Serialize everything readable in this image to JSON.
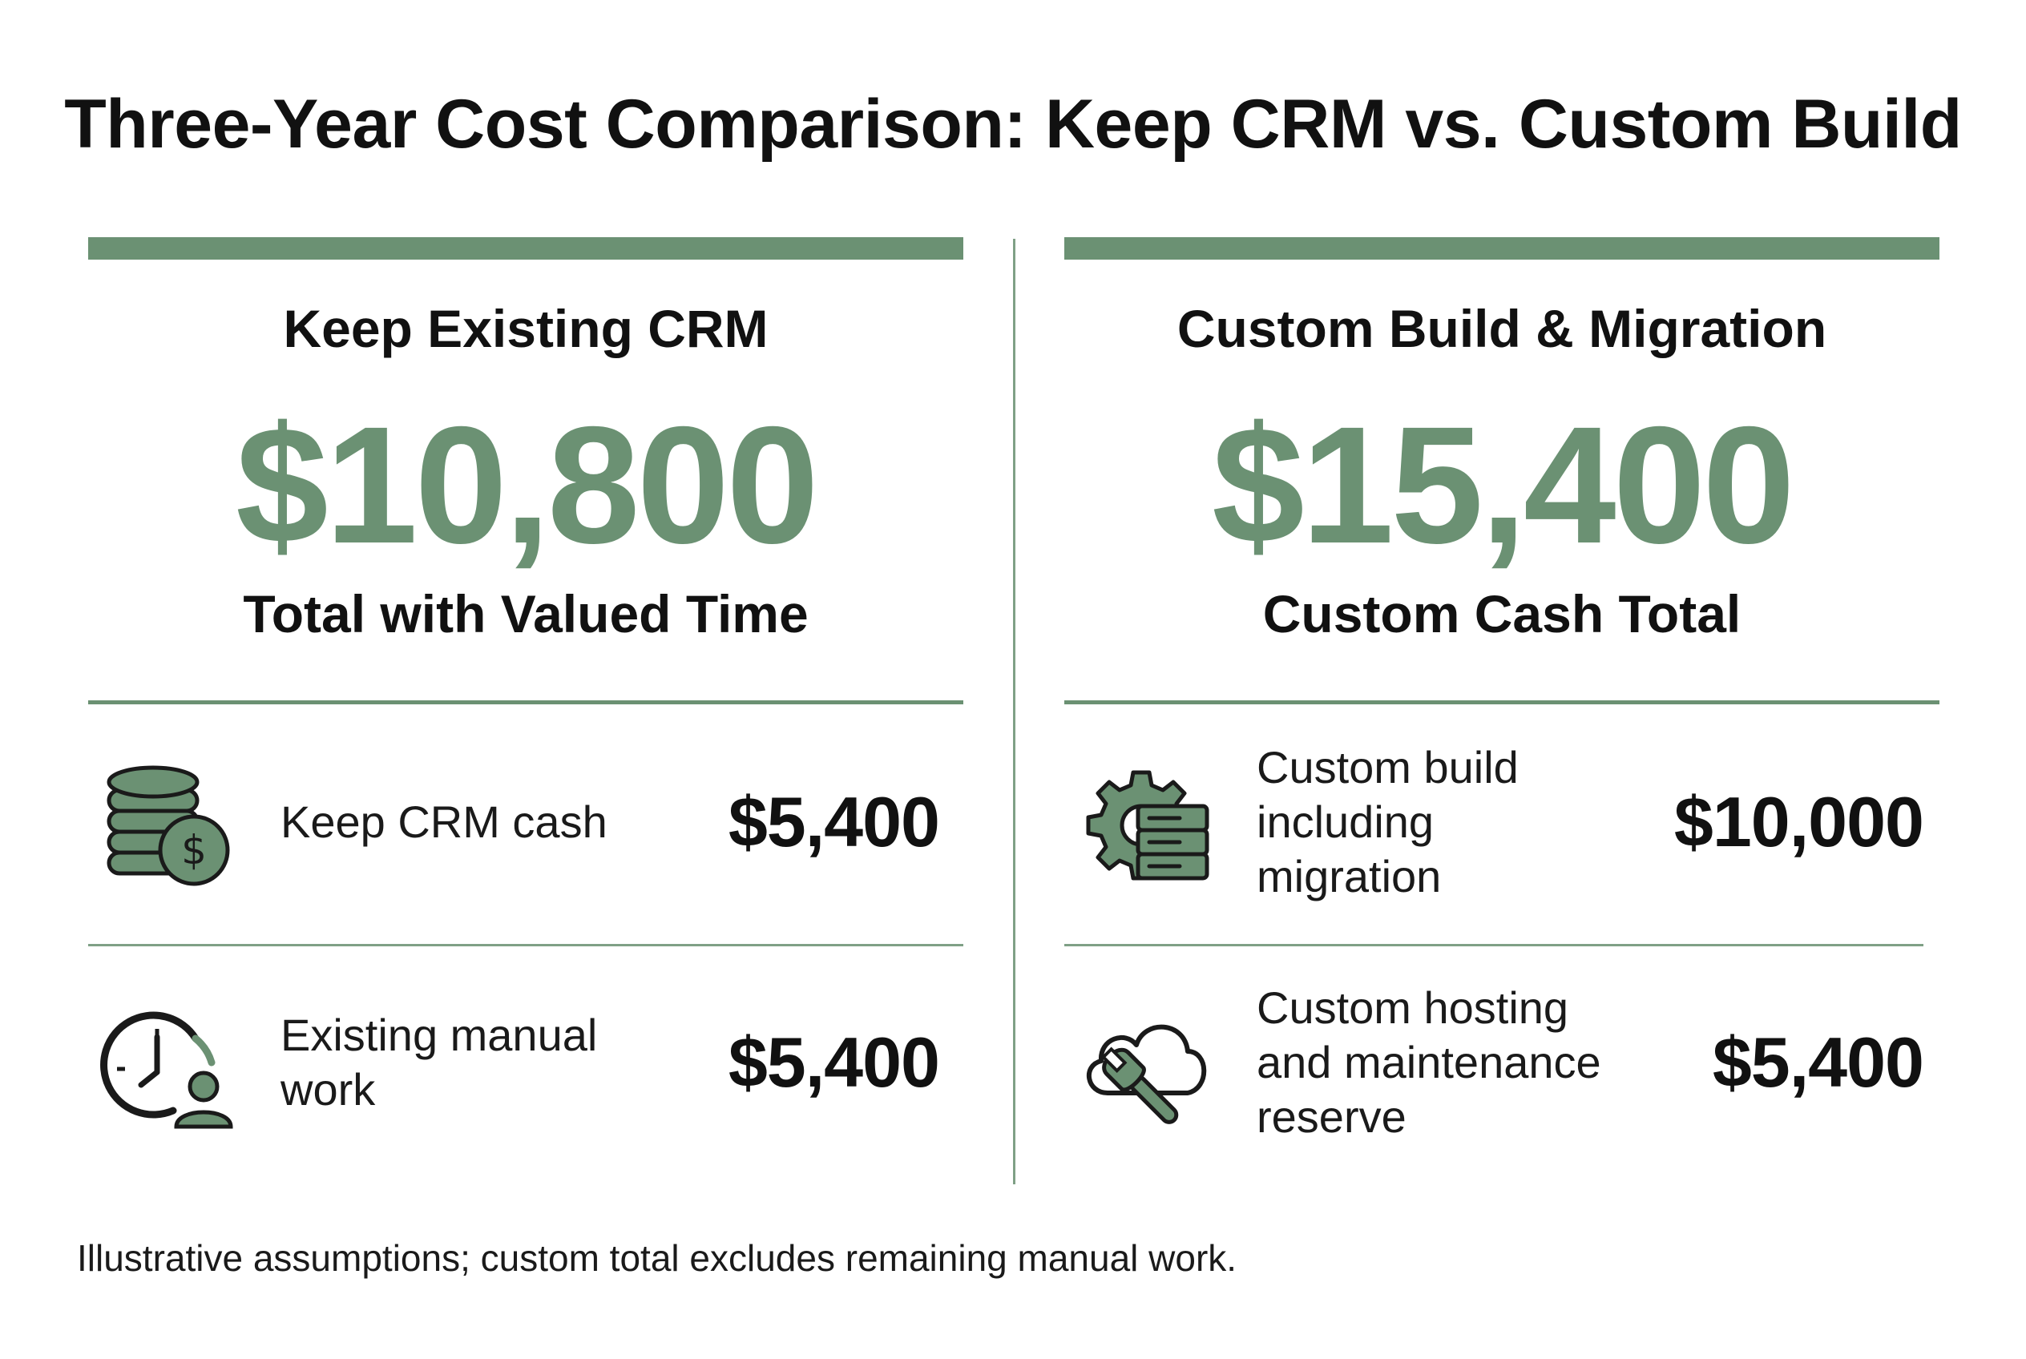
{
  "title": "Three-Year Cost Comparison: Keep CRM vs. Custom Build",
  "colors": {
    "accent": "#6b9173",
    "text": "#111111",
    "background": "#ffffff"
  },
  "left": {
    "heading": "Keep Existing CRM",
    "total": "$10,800",
    "total_label": "Total with Valued Time",
    "items": [
      {
        "icon": "coin-stack-dollar-icon",
        "label": "Keep CRM cash",
        "value": "$5,400"
      },
      {
        "icon": "clock-person-icon",
        "label": "Existing manual work",
        "value": "$5,400"
      }
    ]
  },
  "right": {
    "heading": "Custom Build & Migration",
    "total": "$15,400",
    "total_label": "Custom Cash Total",
    "items": [
      {
        "icon": "gear-server-icon",
        "label": "Custom build including migration",
        "value": "$10,000"
      },
      {
        "icon": "cloud-wrench-icon",
        "label": "Custom hosting and maintenance reserve",
        "value": "$5,400"
      }
    ]
  },
  "footnote": "Illustrative assumptions; custom total excludes remaining manual work."
}
